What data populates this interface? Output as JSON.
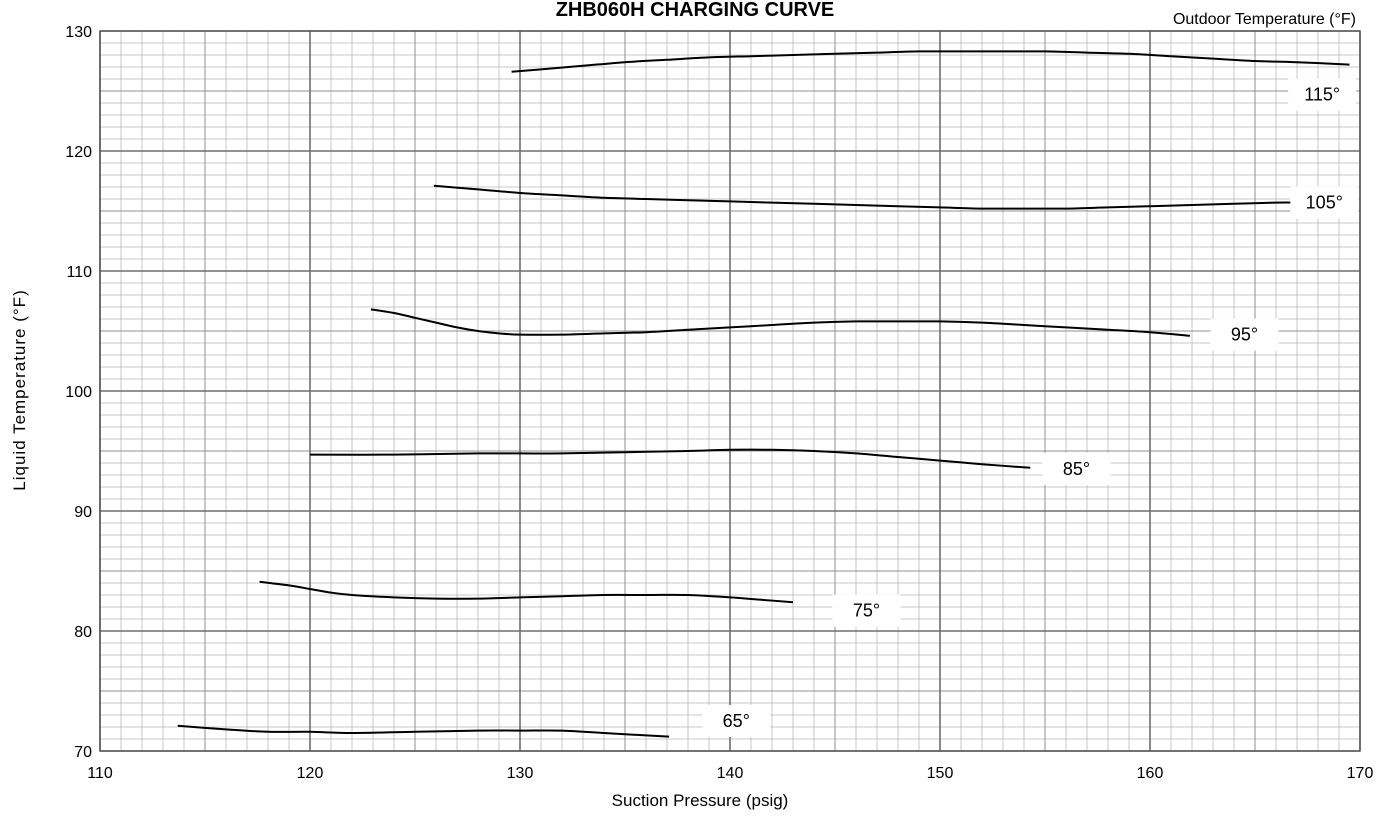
{
  "chart_data": {
    "type": "line",
    "title": "ZHB060H CHARGING CURVE",
    "xlabel": "Suction Pressure (psig)",
    "ylabel": "Liquid  Temperature  (°F)",
    "legend_title": "Outdoor Temperature (°F)",
    "legend_position": "top-right",
    "xlim": [
      110,
      170
    ],
    "ylim": [
      70,
      130
    ],
    "x_ticks": [
      "110",
      "120",
      "130",
      "140",
      "150",
      "160",
      "170"
    ],
    "y_ticks": [
      "70",
      "80",
      "90",
      "100",
      "110",
      "120",
      "130"
    ],
    "grid": true,
    "series": [
      {
        "name": "65°",
        "label_at": [
          140.3,
          72.5
        ],
        "points": [
          [
            113.7,
            72.1
          ],
          [
            116,
            71.8
          ],
          [
            118,
            71.6
          ],
          [
            120,
            71.6
          ],
          [
            122,
            71.5
          ],
          [
            125,
            71.6
          ],
          [
            128,
            71.7
          ],
          [
            130,
            71.7
          ],
          [
            132,
            71.7
          ],
          [
            134,
            71.5
          ],
          [
            136,
            71.3
          ],
          [
            137.1,
            71.2
          ]
        ]
      },
      {
        "name": "75°",
        "label_at": [
          146.5,
          81.7
        ],
        "points": [
          [
            117.6,
            84.1
          ],
          [
            119,
            83.8
          ],
          [
            120,
            83.5
          ],
          [
            121,
            83.2
          ],
          [
            122,
            83
          ],
          [
            124,
            82.8
          ],
          [
            126,
            82.7
          ],
          [
            128,
            82.7
          ],
          [
            130,
            82.8
          ],
          [
            132,
            82.9
          ],
          [
            134,
            83
          ],
          [
            136,
            83
          ],
          [
            138,
            83
          ],
          [
            140,
            82.8
          ],
          [
            141.5,
            82.6
          ],
          [
            143,
            82.4
          ]
        ]
      },
      {
        "name": "85°",
        "label_at": [
          156.5,
          93.5
        ],
        "points": [
          [
            120,
            94.7
          ],
          [
            124,
            94.7
          ],
          [
            128,
            94.8
          ],
          [
            130,
            94.8
          ],
          [
            132,
            94.8
          ],
          [
            135,
            94.9
          ],
          [
            138,
            95
          ],
          [
            140,
            95.1
          ],
          [
            142,
            95.1
          ],
          [
            144,
            95
          ],
          [
            146,
            94.8
          ],
          [
            148,
            94.5
          ],
          [
            150,
            94.2
          ],
          [
            152,
            93.9
          ],
          [
            154.3,
            93.6
          ]
        ]
      },
      {
        "name": "95°",
        "label_at": [
          164.5,
          104.7
        ],
        "points": [
          [
            122.9,
            106.8
          ],
          [
            124,
            106.5
          ],
          [
            125,
            106.1
          ],
          [
            126,
            105.7
          ],
          [
            127,
            105.3
          ],
          [
            128,
            105
          ],
          [
            129,
            104.8
          ],
          [
            130,
            104.7
          ],
          [
            132,
            104.7
          ],
          [
            134,
            104.8
          ],
          [
            136,
            104.9
          ],
          [
            138,
            105.1
          ],
          [
            140,
            105.3
          ],
          [
            142,
            105.5
          ],
          [
            144,
            105.7
          ],
          [
            146,
            105.8
          ],
          [
            148,
            105.8
          ],
          [
            150,
            105.8
          ],
          [
            152,
            105.7
          ],
          [
            154,
            105.5
          ],
          [
            156,
            105.3
          ],
          [
            158,
            105.1
          ],
          [
            160,
            104.9
          ],
          [
            161.9,
            104.6
          ]
        ]
      },
      {
        "name": "105°",
        "label_at": [
          168.3,
          115.7
        ],
        "points": [
          [
            125.9,
            117.1
          ],
          [
            128,
            116.8
          ],
          [
            130,
            116.5
          ],
          [
            132,
            116.3
          ],
          [
            134,
            116.1
          ],
          [
            136,
            116
          ],
          [
            138,
            115.9
          ],
          [
            140,
            115.8
          ],
          [
            142,
            115.7
          ],
          [
            144,
            115.6
          ],
          [
            146,
            115.5
          ],
          [
            148,
            115.4
          ],
          [
            150,
            115.3
          ],
          [
            152,
            115.2
          ],
          [
            154,
            115.2
          ],
          [
            156,
            115.2
          ],
          [
            158,
            115.3
          ],
          [
            160,
            115.4
          ],
          [
            162,
            115.5
          ],
          [
            164,
            115.6
          ],
          [
            166,
            115.7
          ],
          [
            167.2,
            115.7
          ]
        ]
      },
      {
        "name": "115°",
        "label_at": [
          168.2,
          124.7
        ],
        "points": [
          [
            129.6,
            126.6
          ],
          [
            131,
            126.8
          ],
          [
            133,
            127.1
          ],
          [
            135,
            127.4
          ],
          [
            137,
            127.6
          ],
          [
            139,
            127.8
          ],
          [
            141,
            127.9
          ],
          [
            143,
            128
          ],
          [
            145,
            128.1
          ],
          [
            147,
            128.2
          ],
          [
            149,
            128.3
          ],
          [
            151,
            128.3
          ],
          [
            153,
            128.3
          ],
          [
            155,
            128.3
          ],
          [
            157,
            128.2
          ],
          [
            159,
            128.1
          ],
          [
            161,
            127.9
          ],
          [
            163,
            127.7
          ],
          [
            165,
            127.5
          ],
          [
            167,
            127.4
          ],
          [
            169.5,
            127.2
          ]
        ]
      }
    ]
  }
}
